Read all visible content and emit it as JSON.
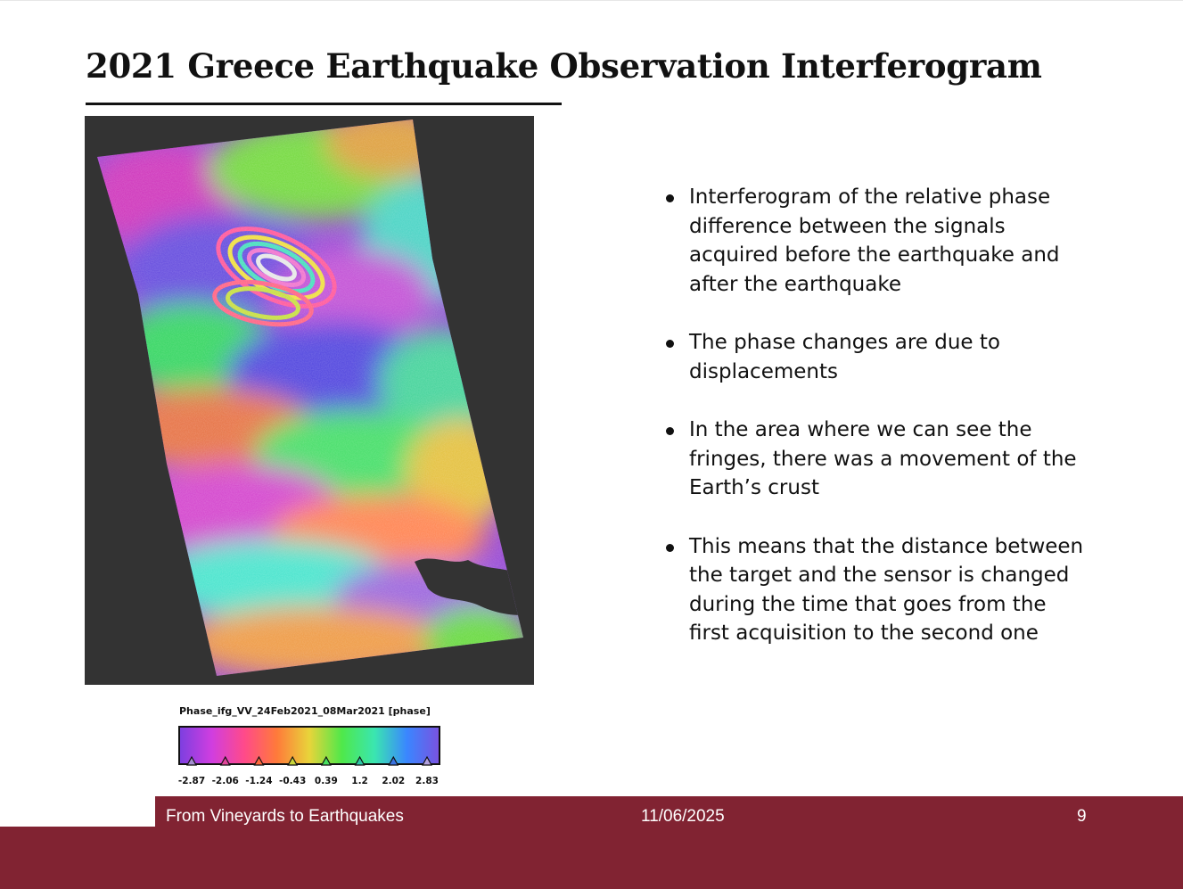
{
  "slide": {
    "title": "2021 Greece Earthquake Observation Interferogram"
  },
  "image": {
    "icon": "interferogram-map-image",
    "colorbar": {
      "title": "Phase_ifg_VV_24Feb2021_08Mar2021 [phase]",
      "ticks": [
        {
          "label": "-2.87",
          "color": "#a48fd0"
        },
        {
          "label": "-2.06",
          "color": "#e0479a"
        },
        {
          "label": "-1.24",
          "color": "#ff6a3a"
        },
        {
          "label": "-0.43",
          "color": "#c9d63a"
        },
        {
          "label": "0.39",
          "color": "#48e060"
        },
        {
          "label": "1.2",
          "color": "#2fc6a8"
        },
        {
          "label": "2.02",
          "color": "#3a72e0"
        },
        {
          "label": "2.83",
          "color": "#b4a2e0"
        }
      ],
      "gradient": [
        "#7b3fe0",
        "#d03ee0",
        "#ff4a8a",
        "#ff7a3a",
        "#e8d43a",
        "#4fe84a",
        "#3ae6b0",
        "#3a86ff",
        "#7a52e0"
      ]
    }
  },
  "bullets": [
    "Interferogram of the relative phase difference between the signals acquired before the earthquake and after the earthquake",
    "The phase changes are due to displacements",
    "In the area where we can see the fringes, there was a movement of the Earth’s crust",
    "This means that the distance between the target and the sensor is changed during the time that goes from the first acquisition to the second one"
  ],
  "footer": {
    "left": "From Vineyards to Earthquakes",
    "date": "11/06/2025",
    "page": "9"
  },
  "colors": {
    "footer": "#812332",
    "map_background": "#333333"
  }
}
